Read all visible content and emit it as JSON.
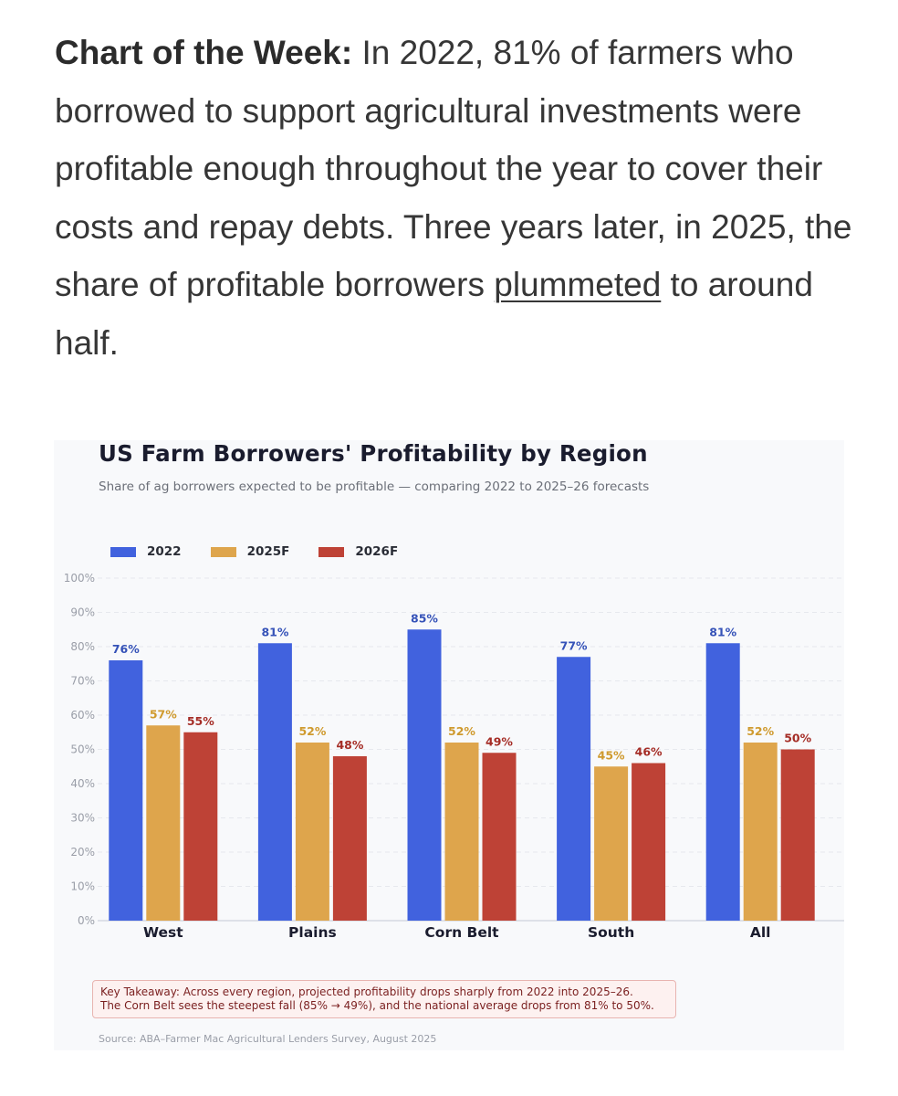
{
  "article": {
    "lead_bold": "Chart of the Week:",
    "text_1": " In 2022, 81% of farmers who borrowed to support agricultural investments were profitable enough throughout the year to cover their costs and repay debts. Three years later, in 2025, the share of profitable borrowers ",
    "link_text": "plummeted",
    "text_2": " to around half."
  },
  "chart_data": {
    "type": "bar",
    "title": "US Farm Borrowers' Profitability by Region",
    "subtitle": "Share of ag borrowers expected to be profitable — comparing 2022 to 2025–26 forecasts",
    "categories": [
      "West",
      "Plains",
      "Corn Belt",
      "South",
      "All"
    ],
    "series": [
      {
        "name": "2022",
        "color": "#4162de",
        "label_color": "#3552b8",
        "values": [
          76,
          81,
          85,
          77,
          81
        ]
      },
      {
        "name": "2025F",
        "color": "#dea54c",
        "label_color": "#cf9a2e",
        "values": [
          57,
          52,
          52,
          45,
          52
        ]
      },
      {
        "name": "2026F",
        "color": "#be4236",
        "label_color": "#a52d26",
        "values": [
          55,
          48,
          49,
          46,
          50
        ]
      }
    ],
    "ylim": [
      0,
      100
    ],
    "yticks": [
      "0%",
      "10%",
      "20%",
      "30%",
      "40%",
      "50%",
      "60%",
      "70%",
      "80%",
      "90%",
      "100%"
    ],
    "value_suffix": "%",
    "grid": true,
    "legend_position": "top-left"
  },
  "takeaway": {
    "line_1": "Key Takeaway: Across every region, projected profitability drops sharply from 2022 into 2025–26.",
    "line_2": "The Corn Belt sees the steepest fall (85% → 49%), and the national average drops from 81% to 50%."
  },
  "source": "Source: ABA–Farmer Mac Agricultural Lenders Survey, August 2025"
}
